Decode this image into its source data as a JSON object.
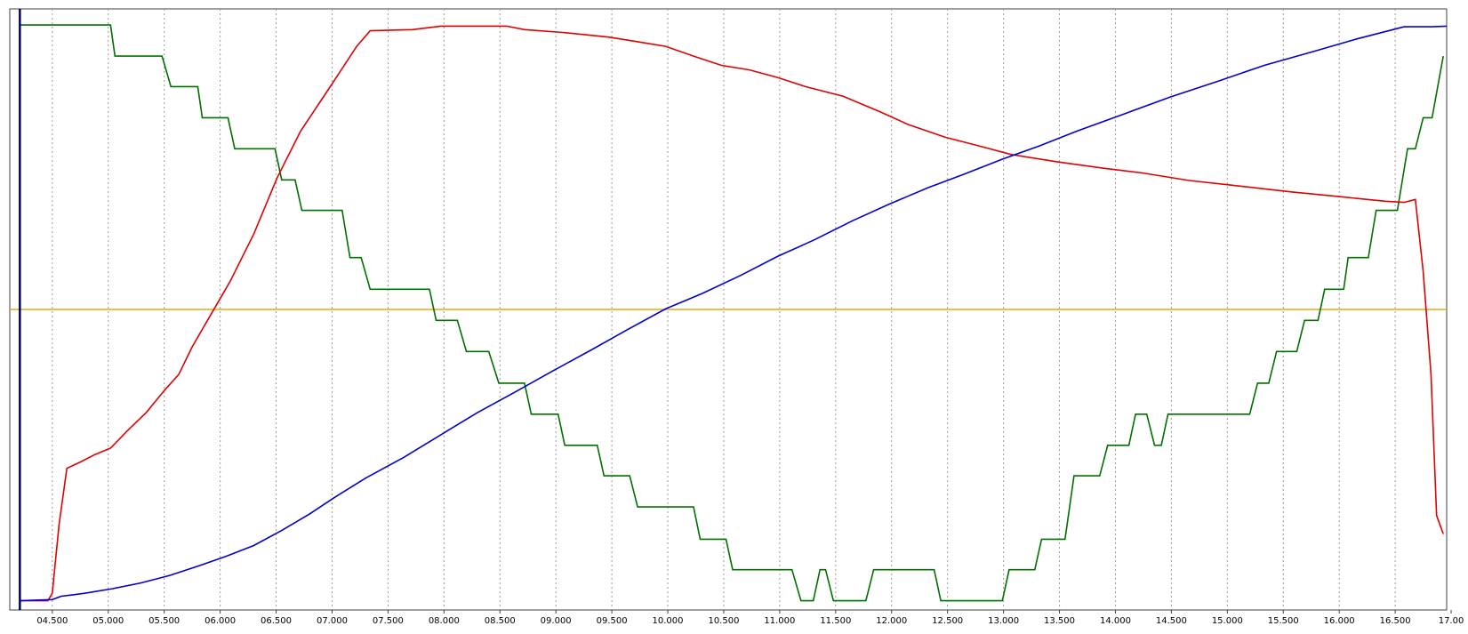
{
  "chart_data": {
    "type": "line",
    "xlim": [
      4.12,
      16.96
    ],
    "ylim": [
      -1.6,
      102.8
    ],
    "grid": true,
    "xticks": [
      {
        "value": 4.5,
        "label": "04.500"
      },
      {
        "value": 5.0,
        "label": "05.000"
      },
      {
        "value": 5.5,
        "label": "05.500"
      },
      {
        "value": 6.0,
        "label": "06.000"
      },
      {
        "value": 6.5,
        "label": "06.500"
      },
      {
        "value": 7.0,
        "label": "07.000"
      },
      {
        "value": 7.5,
        "label": "07.500"
      },
      {
        "value": 8.0,
        "label": "08.000"
      },
      {
        "value": 8.5,
        "label": "08.500"
      },
      {
        "value": 9.0,
        "label": "09.000"
      },
      {
        "value": 9.5,
        "label": "09.500"
      },
      {
        "value": 10.0,
        "label": "10.000"
      },
      {
        "value": 10.5,
        "label": "10.500"
      },
      {
        "value": 11.0,
        "label": "11.000"
      },
      {
        "value": 11.5,
        "label": "11.500"
      },
      {
        "value": 12.0,
        "label": "12.000"
      },
      {
        "value": 12.5,
        "label": "12.500"
      },
      {
        "value": 13.0,
        "label": "13.000"
      },
      {
        "value": 13.5,
        "label": "13.500"
      },
      {
        "value": 14.0,
        "label": "14.000"
      },
      {
        "value": 14.5,
        "label": "14.500"
      },
      {
        "value": 15.0,
        "label": "15.000"
      },
      {
        "value": 15.5,
        "label": "15.500"
      },
      {
        "value": 16.0,
        "label": "16.000"
      },
      {
        "value": 16.5,
        "label": "16.500"
      },
      {
        "value": 17.0,
        "label": "17.00"
      }
    ],
    "reference_line": {
      "y": 50.6,
      "color": "#e6a817"
    },
    "cursor": {
      "x": 4.21,
      "color": "#000080"
    },
    "series": [
      {
        "color": "#007000",
        "x": [
          4.21,
          5.02,
          5.06,
          5.48,
          5.56,
          5.8,
          5.84,
          6.07,
          6.13,
          6.49,
          6.55,
          6.67,
          6.73,
          7.09,
          7.16,
          7.26,
          7.34,
          7.87,
          7.93,
          8.12,
          8.2,
          8.4,
          8.49,
          8.72,
          8.78,
          9.02,
          9.08,
          9.37,
          9.43,
          9.66,
          9.73,
          10.23,
          10.29,
          10.52,
          10.58,
          11.11,
          11.19,
          11.3,
          11.36,
          11.41,
          11.48,
          11.77,
          11.84,
          12.38,
          12.44,
          12.99,
          13.05,
          13.28,
          13.34,
          13.55,
          13.63,
          13.86,
          13.93,
          14.12,
          14.18,
          14.28,
          14.35,
          14.41,
          14.47,
          15.2,
          15.27,
          15.37,
          15.44,
          15.62,
          15.69,
          15.81,
          15.87,
          16.04,
          16.08,
          16.26,
          16.33,
          16.52,
          16.61,
          16.68,
          16.75,
          16.83,
          16.93
        ],
        "values": [
          100,
          100,
          94.6,
          94.6,
          89.3,
          89.3,
          83.9,
          83.9,
          78.5,
          78.5,
          73.1,
          73.1,
          67.8,
          67.8,
          59.6,
          59.6,
          54.1,
          54.1,
          48.7,
          48.7,
          43.3,
          43.3,
          37.8,
          37.8,
          32.4,
          32.4,
          27.0,
          27.0,
          21.7,
          21.7,
          16.3,
          16.3,
          10.7,
          10.7,
          5.4,
          5.4,
          0,
          0,
          5.4,
          5.4,
          0,
          0,
          5.4,
          5.4,
          0,
          0,
          5.4,
          5.4,
          10.7,
          10.7,
          21.7,
          21.7,
          27.0,
          27.0,
          32.4,
          32.4,
          27.0,
          27.0,
          32.4,
          32.4,
          37.8,
          37.8,
          43.3,
          43.3,
          48.7,
          48.7,
          54.1,
          54.1,
          59.6,
          59.6,
          67.8,
          67.8,
          78.5,
          78.5,
          83.9,
          83.9,
          94.6
        ]
      },
      {
        "color": "#e00000",
        "x": [
          4.21,
          4.46,
          4.5,
          4.56,
          4.63,
          4.75,
          4.88,
          5.02,
          5.17,
          5.34,
          5.5,
          5.63,
          5.75,
          5.92,
          6.09,
          6.3,
          6.51,
          6.72,
          6.97,
          7.22,
          7.34,
          7.72,
          7.97,
          8.56,
          8.72,
          9.06,
          9.47,
          9.73,
          9.98,
          10.23,
          10.48,
          10.73,
          10.98,
          11.23,
          11.57,
          11.9,
          12.15,
          12.48,
          12.82,
          13.07,
          13.49,
          13.91,
          14.24,
          14.66,
          15.08,
          15.58,
          16.0,
          16.41,
          16.58,
          16.68,
          16.75,
          16.82,
          16.87,
          16.93
        ],
        "values": [
          0,
          0,
          1.3,
          13.2,
          23.0,
          24.1,
          25.4,
          26.5,
          29.5,
          32.7,
          36.5,
          39.3,
          44.1,
          49.8,
          55.5,
          63.7,
          73.5,
          81.6,
          88.9,
          96.3,
          99.0,
          99.2,
          99.8,
          99.8,
          99.2,
          98.7,
          97.9,
          97.1,
          96.3,
          94.6,
          93.0,
          92.2,
          90.9,
          89.3,
          87.6,
          84.9,
          82.7,
          80.5,
          78.8,
          77.5,
          76.2,
          75.1,
          74.3,
          73.0,
          72.1,
          71.0,
          70.2,
          69.4,
          69.2,
          69.7,
          57.2,
          39.3,
          14.8,
          11.6
        ]
      },
      {
        "color": "#0000d0",
        "x": [
          4.21,
          4.5,
          4.58,
          4.67,
          4.79,
          5.04,
          5.29,
          5.55,
          5.8,
          6.05,
          6.3,
          6.55,
          6.8,
          7.01,
          7.3,
          7.64,
          7.97,
          8.3,
          8.64,
          8.97,
          9.31,
          9.64,
          9.98,
          10.31,
          10.65,
          10.98,
          11.31,
          11.65,
          11.98,
          12.32,
          12.65,
          12.99,
          13.32,
          13.66,
          14.07,
          14.49,
          14.91,
          15.33,
          15.75,
          16.16,
          16.58,
          16.83,
          16.96
        ],
        "values": [
          0,
          0.2,
          0.8,
          1.0,
          1.3,
          2.1,
          3.1,
          4.4,
          6.0,
          7.7,
          9.6,
          12.2,
          15.1,
          17.8,
          21.3,
          24.9,
          28.8,
          32.7,
          36.3,
          39.9,
          43.5,
          47.1,
          50.7,
          53.4,
          56.5,
          59.8,
          62.7,
          66.0,
          68.9,
          71.7,
          74.1,
          76.7,
          79.0,
          81.6,
          84.5,
          87.5,
          90.2,
          93.0,
          95.3,
          97.6,
          99.7,
          99.7,
          99.8
        ]
      }
    ]
  }
}
